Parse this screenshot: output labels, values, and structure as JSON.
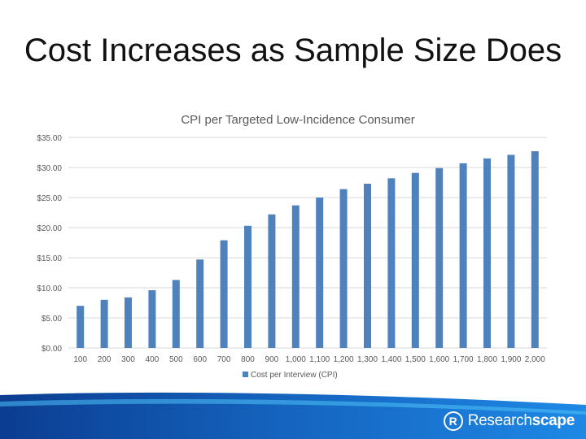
{
  "slide": {
    "title": "Cost Increases as Sample Size Does"
  },
  "brand": {
    "name_light": "Research",
    "name_bold": "scape",
    "mark": "R",
    "mark_icon": "researchscape-logo-icon"
  },
  "chart_data": {
    "type": "bar",
    "title": "CPI per Targeted Low-Incidence Consumer",
    "categories": [
      "100",
      "200",
      "300",
      "400",
      "500",
      "600",
      "700",
      "800",
      "900",
      "1,000",
      "1,100",
      "1,200",
      "1,300",
      "1,400",
      "1,500",
      "1,600",
      "1,700",
      "1,800",
      "1,900",
      "2,000"
    ],
    "series": [
      {
        "name": "Cost per Interview (CPI)",
        "color": "#4F81BD",
        "values": [
          7.0,
          8.0,
          8.4,
          9.6,
          11.3,
          14.7,
          17.9,
          20.3,
          22.2,
          23.7,
          25.0,
          26.4,
          27.3,
          28.2,
          29.1,
          29.9,
          30.7,
          31.5,
          32.1,
          32.7
        ]
      }
    ],
    "y_ticks": [
      "$0.00",
      "$5.00",
      "$10.00",
      "$15.00",
      "$20.00",
      "$25.00",
      "$30.00",
      "$35.00"
    ],
    "ylim": [
      0,
      35
    ],
    "grid": true,
    "legend_position": "bottom"
  }
}
